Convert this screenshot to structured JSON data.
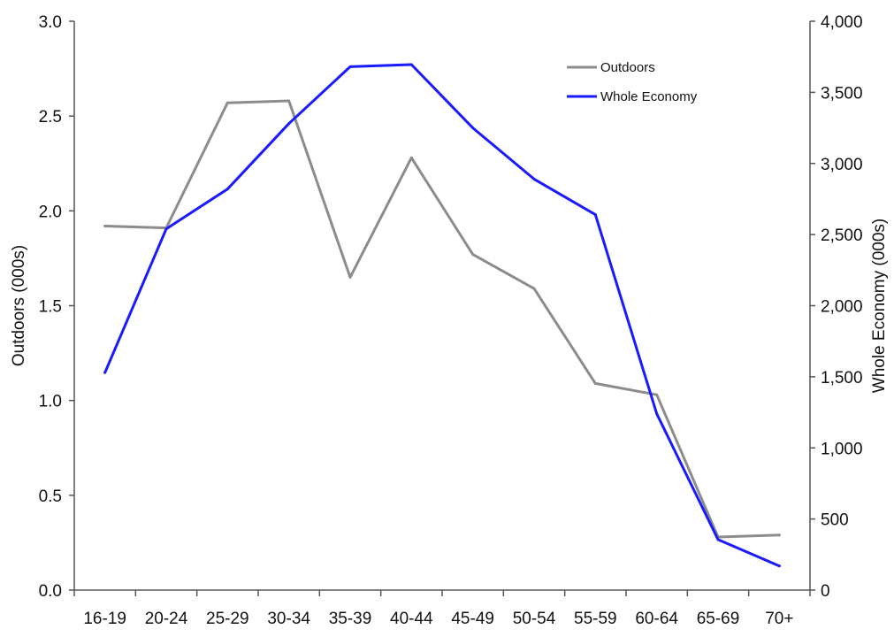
{
  "chart_data": {
    "type": "line",
    "title": "",
    "categories": [
      "16-19",
      "20-24",
      "25-29",
      "30-34",
      "35-39",
      "40-44",
      "45-49",
      "50-54",
      "55-59",
      "60-64",
      "65-69",
      "70+"
    ],
    "xlabel": "",
    "ylabel_left": "Outdoors (000s)",
    "ylabel_right": "Whole Economy (000s)",
    "y_left": {
      "min": 0,
      "max": 3,
      "ticks": [
        "0.0",
        "0.5",
        "1.0",
        "1.5",
        "2.0",
        "2.5",
        "3.0"
      ],
      "tick_values": [
        0,
        0.5,
        1,
        1.5,
        2,
        2.5,
        3
      ]
    },
    "y_right": {
      "min": 0,
      "max": 4000,
      "ticks": [
        "0",
        "500",
        "1,000",
        "1,500",
        "2,000",
        "2,500",
        "3,000",
        "3,500",
        "4,000"
      ],
      "tick_values": [
        0,
        500,
        1000,
        1500,
        2000,
        2500,
        3000,
        3500,
        4000
      ]
    },
    "grid": false,
    "legend_position": "top-right",
    "series": [
      {
        "name": "Outdoors",
        "axis": "left",
        "color": "#8c8c8c",
        "values": [
          1.92,
          1.91,
          2.57,
          2.58,
          1.65,
          2.28,
          1.77,
          1.59,
          1.09,
          1.03,
          0.28,
          0.29
        ]
      },
      {
        "name": "Whole Economy",
        "axis": "right",
        "color": "#1a1aff",
        "values": [
          1530,
          2540,
          2820,
          3280,
          3680,
          3695,
          3250,
          2890,
          2640,
          1240,
          355,
          170
        ]
      }
    ]
  }
}
